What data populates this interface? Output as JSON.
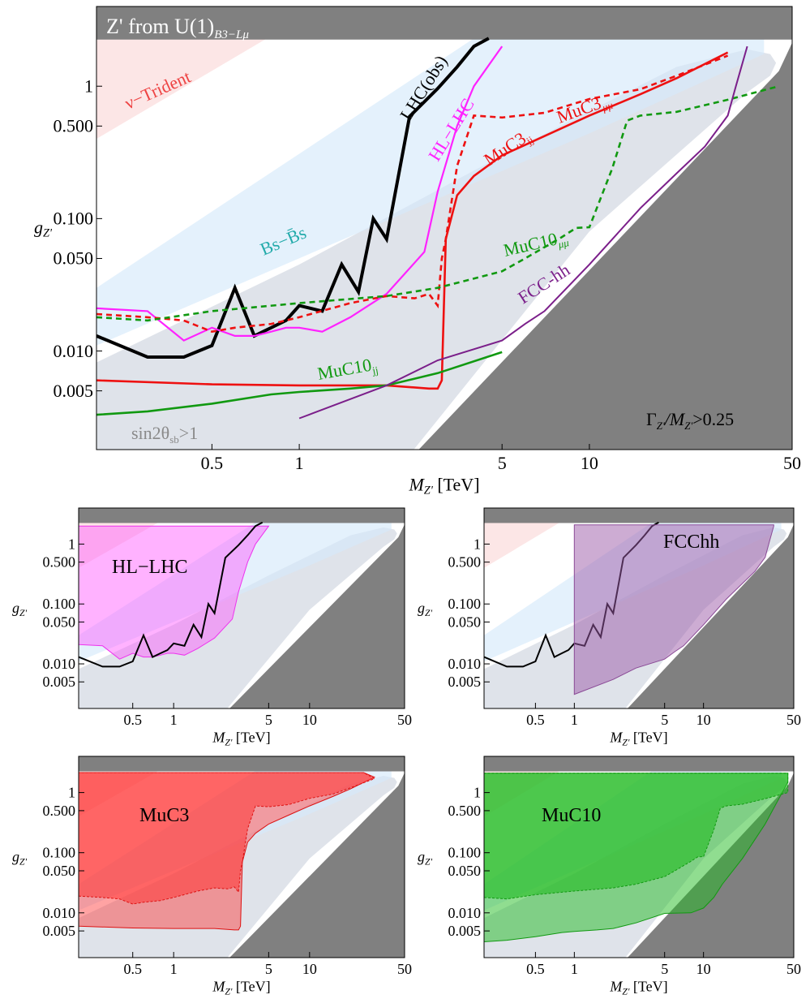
{
  "chart_data": [
    {
      "id": "main",
      "type": "line",
      "title": "",
      "xlabel": "M_Z'  [TeV]",
      "ylabel": "g_Z'",
      "xscale": "log",
      "yscale": "log",
      "xlim": [
        0.2,
        50
      ],
      "ylim": [
        0.0018,
        4
      ],
      "x_ticks": [
        0.5,
        1,
        5,
        10,
        50
      ],
      "x_tick_labels": [
        "0.5",
        "1",
        "5",
        "10",
        "50"
      ],
      "y_ticks": [
        0.005,
        0.01,
        0.05,
        0.1,
        0.5,
        1
      ],
      "y_tick_labels": [
        "0.005",
        "0.010",
        "0.050",
        "0.100",
        "0.500",
        "1"
      ],
      "colors": {
        "LHC(obs)": "#000000",
        "HL-LHC": "#ff22ff",
        "MuC3": "#ee1111",
        "MuC10": "#119911",
        "FCC-hh": "#7b1f8a",
        "Bs-mixing": "#d6e9fa",
        "nu-Trident": "#fbe0e0",
        "sin2theta": "#dfe3ea",
        "excluded-gray": "#808080"
      },
      "regions": {
        "model_region_text": "Z' from U(1)",
        "model_region_subscript": "B3−Lμ",
        "nu_trident": "ν−Trident",
        "bs_mixing": "Bs−B̄s",
        "sin2theta_text": "sin2θ",
        "sin2theta_sub": "sb",
        "sin2theta_tail": ">1",
        "width_text": "Γ",
        "width_sub1": "Z'",
        "width_mid": "/M",
        "width_sub2": "Z'",
        "width_tail": ">0.25"
      },
      "series": [
        {
          "name": "LHC(obs)",
          "style": "solid",
          "x": [
            0.2,
            0.3,
            0.4,
            0.5,
            0.6,
            0.7,
            0.8,
            0.9,
            1.0,
            1.2,
            1.4,
            1.6,
            1.8,
            2.0,
            2.4,
            3.0,
            3.5,
            4.0,
            4.5
          ],
          "y": [
            0.013,
            0.009,
            0.009,
            0.011,
            0.03,
            0.013,
            0.015,
            0.017,
            0.022,
            0.02,
            0.045,
            0.028,
            0.1,
            0.07,
            0.59,
            0.96,
            1.4,
            2.0,
            2.3
          ]
        },
        {
          "name": "HL-LHC",
          "style": "solid",
          "x": [
            0.2,
            0.3,
            0.4,
            0.5,
            0.6,
            0.7,
            0.8,
            0.9,
            1.0,
            1.2,
            1.5,
            2.0,
            2.7,
            3.0,
            3.5,
            4.0,
            5.0
          ],
          "y": [
            0.021,
            0.02,
            0.012,
            0.015,
            0.013,
            0.013,
            0.014,
            0.015,
            0.015,
            0.014,
            0.018,
            0.027,
            0.056,
            0.16,
            0.5,
            1.0,
            2.0
          ]
        },
        {
          "name": "MuC3_jj",
          "label": "MuC3",
          "label_sub": "jj",
          "style": "solid",
          "x": [
            0.2,
            0.5,
            1.0,
            2.0,
            2.8,
            3.0,
            3.1,
            3.2,
            3.5,
            4.0,
            5.0,
            7.0,
            10.0,
            15.0,
            20.0,
            30.0
          ],
          "y": [
            0.006,
            0.0056,
            0.0055,
            0.0055,
            0.0052,
            0.0052,
            0.006,
            0.07,
            0.15,
            0.21,
            0.3,
            0.42,
            0.6,
            0.87,
            1.15,
            1.8
          ]
        },
        {
          "name": "MuC3_μμ",
          "label": "MuC3",
          "label_sub": "μμ",
          "style": "dashed",
          "x": [
            0.2,
            0.3,
            0.4,
            0.5,
            0.6,
            0.8,
            1.0,
            1.5,
            2.0,
            2.5,
            2.8,
            3.0,
            3.1,
            3.2,
            3.5,
            4.0,
            5.0,
            7.0,
            10.0,
            15.0,
            20.0,
            30.0
          ],
          "y": [
            0.019,
            0.018,
            0.017,
            0.014,
            0.015,
            0.016,
            0.018,
            0.023,
            0.026,
            0.025,
            0.027,
            0.022,
            0.05,
            0.07,
            0.25,
            0.6,
            0.58,
            0.63,
            0.8,
            0.95,
            1.2,
            1.7
          ]
        },
        {
          "name": "MuC10_jj",
          "label": "MuC10",
          "label_sub": "jj",
          "style": "solid",
          "x": [
            0.2,
            0.3,
            0.5,
            0.8,
            1.0,
            1.5,
            2.0,
            3.0,
            5.0
          ],
          "y": [
            0.0033,
            0.0035,
            0.004,
            0.0047,
            0.0049,
            0.0052,
            0.0055,
            0.0068,
            0.0098
          ]
        },
        {
          "name": "MuC10_μμ",
          "label": "MuC10",
          "label_sub": "μμ",
          "style": "dashed",
          "x": [
            0.2,
            0.3,
            0.5,
            1.0,
            2.0,
            3.0,
            5.0,
            6.0,
            8.0,
            9.0,
            10.0,
            12.0,
            13.5,
            15.0,
            20.0,
            30.0,
            45.0
          ],
          "y": [
            0.018,
            0.017,
            0.02,
            0.023,
            0.026,
            0.03,
            0.04,
            0.05,
            0.072,
            0.085,
            0.086,
            0.24,
            0.55,
            0.6,
            0.64,
            0.79,
            1.0
          ]
        },
        {
          "name": "FCC-hh",
          "style": "solid",
          "x": [
            1.0,
            2.0,
            3.0,
            5.0,
            6.0,
            7.0,
            10.0,
            15.0,
            20.0,
            25.0,
            30.0,
            32.0,
            35.0
          ],
          "y": [
            0.0031,
            0.0055,
            0.0085,
            0.012,
            0.016,
            0.02,
            0.045,
            0.12,
            0.22,
            0.35,
            0.6,
            1.0,
            2.0
          ]
        }
      ]
    },
    {
      "id": "panel-hl-lhc",
      "type": "area",
      "label": "HL−LHC",
      "xlabel": "M_Z'  [TeV]",
      "ylabel": "g_Z'",
      "fill": "#ff55ff",
      "edge": "#ee33ee",
      "band_x": [
        0.2,
        0.3,
        0.4,
        0.5,
        0.6,
        0.7,
        0.8,
        0.9,
        1.0,
        1.2,
        1.5,
        2.0,
        2.7,
        3.0,
        3.5,
        4.0,
        5.0
      ],
      "band_low": [
        0.021,
        0.02,
        0.012,
        0.015,
        0.013,
        0.013,
        0.014,
        0.015,
        0.015,
        0.014,
        0.018,
        0.027,
        0.056,
        0.16,
        0.5,
        1.0,
        2.0
      ],
      "band_high": [
        2.0,
        2.0,
        2.0,
        2.0,
        2.0,
        2.0,
        2.0,
        2.0,
        2.0,
        2.0,
        2.0,
        2.0,
        2.0,
        2.0,
        2.0,
        2.0,
        2.0
      ]
    },
    {
      "id": "panel-fcchh",
      "type": "area",
      "label": "FCChh",
      "xlabel": "M_Z'  [TeV]",
      "ylabel": "g_Z'",
      "fill": "#9c5aa8",
      "edge": "#8a4a96",
      "band_x": [
        1.0,
        2.0,
        3.0,
        5.0,
        6.0,
        7.0,
        10.0,
        15.0,
        20.0,
        25.0,
        30.0,
        32.0,
        35.0
      ],
      "band_low": [
        0.0031,
        0.0055,
        0.0085,
        0.012,
        0.016,
        0.02,
        0.045,
        0.12,
        0.22,
        0.35,
        0.6,
        1.0,
        2.0
      ],
      "band_high": [
        2.0,
        2.0,
        2.0,
        2.0,
        2.0,
        2.0,
        2.0,
        2.0,
        2.0,
        2.0,
        2.0,
        2.0,
        2.0
      ]
    },
    {
      "id": "panel-muc3",
      "type": "area",
      "label": "MuC3",
      "xlabel": "M_Z'  [TeV]",
      "ylabel": "g_Z'",
      "fill": "#ff3333",
      "edge": "#dd1111"
    },
    {
      "id": "panel-muc10",
      "type": "area",
      "label": "MuC10",
      "xlabel": "M_Z'  [TeV]",
      "ylabel": "g_Z'",
      "fill": "#22bb22",
      "edge": "#119911"
    }
  ]
}
